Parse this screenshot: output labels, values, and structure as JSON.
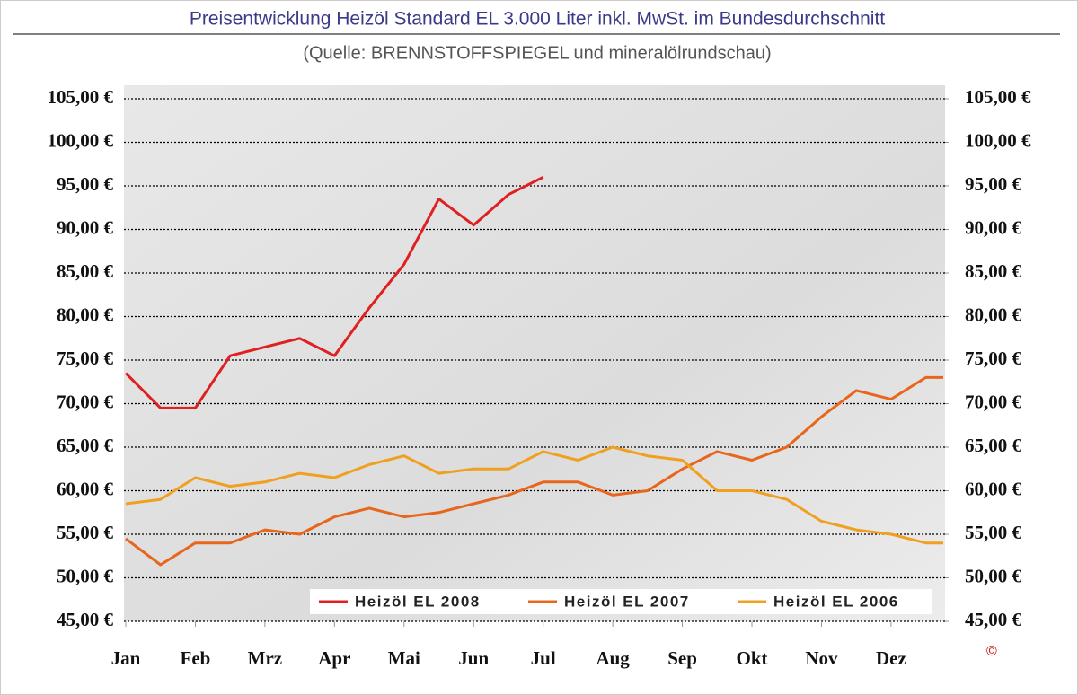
{
  "chart_data": {
    "type": "line",
    "title": "Preisentwicklung Heizöl Standard EL 3.000 Liter inkl. MwSt. im Bundesdurchschnitt",
    "subtitle": "(Quelle: BRENNSTOFFSPIEGEL und mineralölrundschau)",
    "copyright": "©",
    "x": [
      0,
      0.5,
      1,
      1.5,
      2,
      2.5,
      3,
      3.5,
      4,
      4.5,
      5,
      5.5,
      6,
      6.5,
      7,
      7.5,
      8,
      8.5,
      9,
      9.5,
      10,
      10.5,
      11,
      11.5,
      11.75
    ],
    "xlim": [
      0,
      11.75
    ],
    "xticks": [
      {
        "value": 0,
        "label": "Jan"
      },
      {
        "value": 1,
        "label": "Feb"
      },
      {
        "value": 2,
        "label": "Mrz"
      },
      {
        "value": 3,
        "label": "Apr"
      },
      {
        "value": 4,
        "label": "Mai"
      },
      {
        "value": 5,
        "label": "Jun"
      },
      {
        "value": 6,
        "label": "Jul"
      },
      {
        "value": 7,
        "label": "Aug"
      },
      {
        "value": 8,
        "label": "Sep"
      },
      {
        "value": 9,
        "label": "Okt"
      },
      {
        "value": 10,
        "label": "Nov"
      },
      {
        "value": 11,
        "label": "Dez"
      }
    ],
    "ylim": [
      45,
      105
    ],
    "yticks": [
      {
        "value": 45,
        "label": "45,00 €"
      },
      {
        "value": 50,
        "label": "50,00 €"
      },
      {
        "value": 55,
        "label": "55,00 €"
      },
      {
        "value": 60,
        "label": "60,00 €"
      },
      {
        "value": 65,
        "label": "65,00 €"
      },
      {
        "value": 70,
        "label": "70,00 €"
      },
      {
        "value": 75,
        "label": "75,00 €"
      },
      {
        "value": 80,
        "label": "80,00 €"
      },
      {
        "value": 85,
        "label": "85,00 €"
      },
      {
        "value": 90,
        "label": "90,00 €"
      },
      {
        "value": 95,
        "label": "95,00 €"
      },
      {
        "value": 100,
        "label": "100,00 €"
      },
      {
        "value": 105,
        "label": "105,00 €"
      }
    ],
    "y2lim": [
      45,
      105
    ],
    "y2ticks": [
      {
        "value": 45,
        "label": "45,00 €"
      },
      {
        "value": 50,
        "label": "50,00 €"
      },
      {
        "value": 55,
        "label": "55,00 €"
      },
      {
        "value": 60,
        "label": "60,00 €"
      },
      {
        "value": 65,
        "label": "65,00 €"
      },
      {
        "value": 70,
        "label": "70,00 €"
      },
      {
        "value": 75,
        "label": "75,00 €"
      },
      {
        "value": 80,
        "label": "80,00 €"
      },
      {
        "value": 85,
        "label": "85,00 €"
      },
      {
        "value": 90,
        "label": "90,00 €"
      },
      {
        "value": 95,
        "label": "95,00 €"
      },
      {
        "value": 100,
        "label": "100,00 €"
      },
      {
        "value": 105,
        "label": "105,00 €"
      }
    ],
    "grid": true,
    "legend": "bottom",
    "series": [
      {
        "name": "Heizöl EL 2008",
        "color": "#e02020",
        "values": [
          73.5,
          69.5,
          69.5,
          75.5,
          76.5,
          77.5,
          75.5,
          81,
          86,
          93.5,
          90.5,
          94,
          96,
          null,
          null,
          null,
          null,
          null,
          null,
          null,
          null,
          null,
          null,
          null,
          null
        ]
      },
      {
        "name": "Heizöl EL 2007",
        "color": "#e8661c",
        "values": [
          54.5,
          51.5,
          54,
          54,
          55.5,
          55,
          57,
          58,
          57,
          57.5,
          58.5,
          59.5,
          61,
          61,
          59.5,
          60,
          62.5,
          64.5,
          63.5,
          65,
          68.5,
          71.5,
          70.5,
          73,
          73
        ]
      },
      {
        "name": "Heizöl EL 2006",
        "color": "#f0a020",
        "values": [
          58.5,
          59,
          61.5,
          60.5,
          61,
          62,
          61.5,
          63,
          64,
          62,
          62.5,
          62.5,
          64.5,
          63.5,
          65,
          64,
          63.5,
          60,
          60,
          59,
          56.5,
          55.5,
          55,
          54,
          54
        ]
      }
    ]
  }
}
